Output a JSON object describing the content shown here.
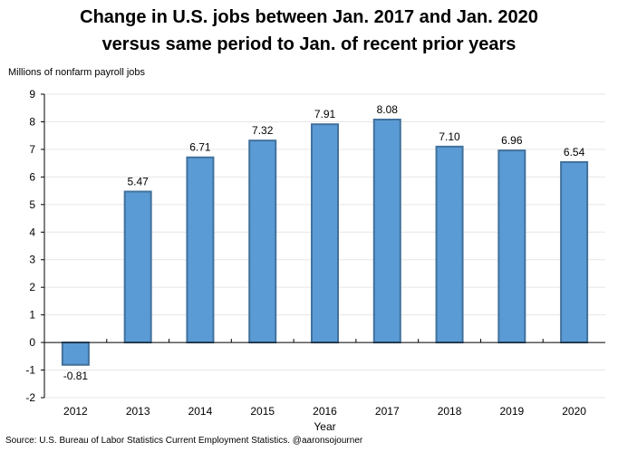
{
  "title_line1": "Change in U.S. jobs between Jan. 2017 and Jan. 2020",
  "title_line2": "versus same period to Jan. of recent prior years",
  "source": "Source: U.S. Bureau of Labor Statistics Current Employment Statistics. @aaronsojourner",
  "colors": {
    "bar_fill": "#5B9BD5",
    "bar_stroke": "#41719C",
    "grid": "#e6e6e6",
    "axis": "#000000"
  },
  "chart_data": {
    "type": "bar",
    "categories": [
      "2012",
      "2013",
      "2014",
      "2015",
      "2016",
      "2017",
      "2018",
      "2019",
      "2020"
    ],
    "values": [
      -0.81,
      5.47,
      6.71,
      7.32,
      7.91,
      8.08,
      7.1,
      6.96,
      6.54
    ],
    "value_labels": [
      "-0.81",
      "5.47",
      "6.71",
      "7.32",
      "7.91",
      "8.08",
      "7.10",
      "6.96",
      "6.54"
    ],
    "ylabel": "Millions of nonfarm payroll jobs",
    "xlabel": "Year",
    "ylim": [
      -2,
      9
    ],
    "yticks": [
      "-2",
      "-1",
      "0",
      "1",
      "2",
      "3",
      "4",
      "5",
      "6",
      "7",
      "8",
      "9"
    ],
    "grid": true,
    "legend": "none"
  }
}
